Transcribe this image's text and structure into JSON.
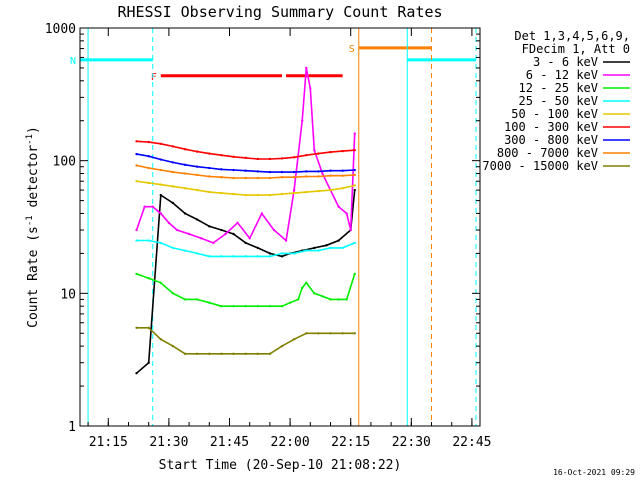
{
  "chart_data": {
    "type": "line",
    "title": "RHESSI Observing Summary Count Rates",
    "xlabel": "Start Time (20-Sep-10 21:08:22)",
    "ylabel_main": "Count Rate (s",
    "ylabel_sup1": "-1",
    "ylabel_mid": " detector",
    "ylabel_sup2": "-1",
    "ylabel_end": ")",
    "footer_date": "16-Oct-2021 09:29",
    "yscale": "log",
    "ylim": [
      1,
      1000
    ],
    "xlim_minutes": [
      21.13,
      22.77
    ],
    "x_ticks": [
      "21:15",
      "21:30",
      "21:45",
      "22:00",
      "22:15",
      "22:30",
      "22:45"
    ],
    "y_ticks": [
      "1",
      "10",
      "100",
      "1000"
    ],
    "legend_header": [
      "Det 1,3,4,5,6,9,",
      "FDecim 1, Att 0"
    ],
    "series": [
      {
        "name": "3 - 6 keV",
        "color": "#000000",
        "x": [
          "21:22",
          "21:25",
          "21:28",
          "21:31",
          "21:34",
          "21:37",
          "21:40",
          "21:43",
          "21:46",
          "21:49",
          "21:52",
          "21:55",
          "21:58",
          "22:00",
          "22:03",
          "22:06",
          "22:09",
          "22:12",
          "22:15",
          "22:16"
        ],
        "y": [
          2.5,
          3,
          55,
          48,
          40,
          36,
          32,
          30,
          28,
          24,
          22,
          20,
          19,
          20,
          21,
          22,
          23,
          25,
          30,
          60
        ]
      },
      {
        "name": "6 - 12 keV",
        "color": "#ff00ff",
        "x": [
          "21:22",
          "21:24",
          "21:26",
          "21:28",
          "21:30",
          "21:32",
          "21:35",
          "21:38",
          "21:41",
          "21:44",
          "21:47",
          "21:50",
          "21:53",
          "21:56",
          "21:59",
          "22:01",
          "22:03",
          "22:04",
          "22:05",
          "22:06",
          "22:08",
          "22:10",
          "22:12",
          "22:14",
          "22:15",
          "22:16"
        ],
        "y": [
          30,
          45,
          45,
          40,
          34,
          30,
          28,
          26,
          24,
          28,
          34,
          26,
          40,
          30,
          25,
          60,
          200,
          500,
          350,
          120,
          80,
          60,
          45,
          40,
          30,
          160
        ]
      },
      {
        "name": "12 - 25 keV",
        "color": "#00ee00",
        "x": [
          "21:22",
          "21:25",
          "21:28",
          "21:31",
          "21:34",
          "21:37",
          "21:40",
          "21:43",
          "21:46",
          "21:49",
          "21:52",
          "21:55",
          "21:58",
          "22:00",
          "22:02",
          "22:03",
          "22:04",
          "22:06",
          "22:08",
          "22:10",
          "22:12",
          "22:14",
          "22:16"
        ],
        "y": [
          14,
          13,
          12,
          10,
          9,
          9,
          8.5,
          8,
          8,
          8,
          8,
          8,
          8,
          8.5,
          9,
          11,
          12,
          10,
          9.5,
          9,
          9,
          9,
          14
        ]
      },
      {
        "name": "25 - 50 keV",
        "color": "#00ffff",
        "x": [
          "21:22",
          "21:25",
          "21:28",
          "21:31",
          "21:34",
          "21:37",
          "21:40",
          "21:43",
          "21:46",
          "21:49",
          "21:52",
          "21:55",
          "21:58",
          "22:01",
          "22:04",
          "22:07",
          "22:10",
          "22:13",
          "22:16"
        ],
        "y": [
          25,
          25,
          24,
          22,
          21,
          20,
          19,
          19,
          19,
          19,
          19,
          19,
          20,
          20,
          21,
          21,
          22,
          22,
          24
        ]
      },
      {
        "name": "50 - 100 keV",
        "color": "#e6c800",
        "x": [
          "21:22",
          "21:25",
          "21:28",
          "21:31",
          "21:34",
          "21:37",
          "21:40",
          "21:43",
          "21:46",
          "21:49",
          "21:52",
          "21:55",
          "21:58",
          "22:01",
          "22:04",
          "22:07",
          "22:10",
          "22:13",
          "22:16"
        ],
        "y": [
          70,
          68,
          66,
          64,
          62,
          60,
          58,
          57,
          56,
          55,
          55,
          55,
          56,
          57,
          58,
          59,
          60,
          62,
          65
        ]
      },
      {
        "name": "100 - 300 keV",
        "color": "#ff0000",
        "x": [
          "21:22",
          "21:25",
          "21:28",
          "21:31",
          "21:34",
          "21:37",
          "21:40",
          "21:43",
          "21:46",
          "21:49",
          "21:52",
          "21:55",
          "21:58",
          "22:01",
          "22:04",
          "22:07",
          "22:10",
          "22:13",
          "22:16"
        ],
        "y": [
          140,
          138,
          134,
          128,
          122,
          117,
          113,
          110,
          107,
          105,
          103,
          103,
          104,
          106,
          110,
          113,
          116,
          118,
          120
        ]
      },
      {
        "name": "300 - 800 keV",
        "color": "#0000ff",
        "x": [
          "21:22",
          "21:25",
          "21:28",
          "21:31",
          "21:34",
          "21:37",
          "21:40",
          "21:43",
          "21:46",
          "21:49",
          "21:52",
          "21:55",
          "21:58",
          "22:01",
          "22:04",
          "22:07",
          "22:10",
          "22:13",
          "22:16"
        ],
        "y": [
          112,
          108,
          102,
          97,
          93,
          90,
          88,
          86,
          85,
          84,
          83,
          82,
          82,
          82,
          83,
          83,
          84,
          84,
          85
        ]
      },
      {
        "name": "800 - 7000 keV",
        "color": "#ff8000",
        "x": [
          "21:22",
          "21:25",
          "21:28",
          "21:31",
          "21:34",
          "21:37",
          "21:40",
          "21:43",
          "21:46",
          "21:49",
          "21:52",
          "21:55",
          "21:58",
          "22:01",
          "22:04",
          "22:07",
          "22:10",
          "22:13",
          "22:16"
        ],
        "y": [
          92,
          88,
          85,
          82,
          80,
          78,
          76,
          75,
          74,
          74,
          74,
          74,
          75,
          75,
          76,
          76,
          77,
          77,
          78
        ]
      },
      {
        "name": "7000 - 15000 keV",
        "color": "#808000",
        "x": [
          "21:22",
          "21:25",
          "21:28",
          "21:31",
          "21:34",
          "21:37",
          "21:40",
          "21:43",
          "21:46",
          "21:49",
          "21:52",
          "21:55",
          "21:58",
          "22:01",
          "22:04",
          "22:07",
          "22:10",
          "22:13",
          "22:16"
        ],
        "y": [
          5.5,
          5.5,
          4.5,
          4,
          3.5,
          3.5,
          3.5,
          3.5,
          3.5,
          3.5,
          3.5,
          3.5,
          4,
          4.5,
          5,
          5,
          5,
          5,
          5
        ]
      }
    ],
    "flags": [
      {
        "label": "N",
        "color": "#00ffff",
        "level": 0.92,
        "segments": [
          [
            "21:08",
            "21:26"
          ],
          [
            "22:29",
            "22:46"
          ]
        ]
      },
      {
        "label": "F",
        "color": "#ff0000",
        "level": 0.88,
        "segments": [
          [
            "21:28",
            "21:58"
          ],
          [
            "21:59",
            "22:13"
          ]
        ]
      },
      {
        "label": "S",
        "color": "#ff8000",
        "level": 0.95,
        "segments": [
          [
            "22:17",
            "22:35"
          ]
        ]
      }
    ],
    "vertical_lines": [
      {
        "x": "21:10",
        "color": "#00ffff",
        "style": "solid"
      },
      {
        "x": "21:26",
        "color": "#00ffff",
        "style": "dashed"
      },
      {
        "x": "22:17",
        "color": "#ff8000",
        "style": "solid"
      },
      {
        "x": "22:29",
        "color": "#00ffff",
        "style": "solid"
      },
      {
        "x": "22:35",
        "color": "#ff8000",
        "style": "dashed"
      },
      {
        "x": "22:46",
        "color": "#00ffff",
        "style": "dashed"
      }
    ]
  }
}
